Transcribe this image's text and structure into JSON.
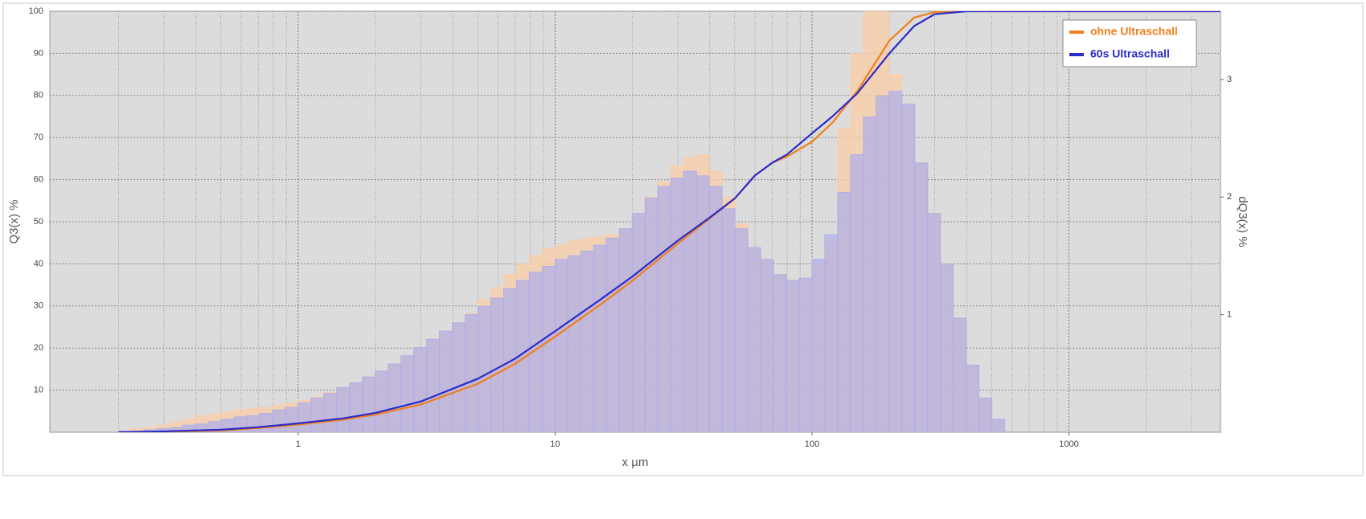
{
  "chart_data": {
    "type": "histogram",
    "xlabel": "x µm",
    "ylabel": "Q3(x) %",
    "y2label": "dQ3(x) %",
    "xscale": "log",
    "xlim": [
      0.108,
      3890
    ],
    "xticks": [
      1,
      10,
      100,
      1000
    ],
    "ylim": [
      0,
      100
    ],
    "yticks": [
      10,
      20,
      30,
      40,
      50,
      60,
      70,
      80,
      90,
      100
    ],
    "y2lim": [
      0,
      3.58
    ],
    "y2ticks": [
      1,
      2,
      3
    ],
    "grid": true,
    "minor_grid": true,
    "legend": "top-right",
    "bins": [
      0.1995,
      0.2239,
      0.2512,
      0.2818,
      0.3162,
      0.3548,
      0.3981,
      0.4467,
      0.5012,
      0.5623,
      0.631,
      0.7079,
      0.7943,
      0.8913,
      1,
      1.122,
      1.259,
      1.413,
      1.585,
      1.778,
      1.995,
      2.239,
      2.512,
      2.818,
      3.162,
      3.548,
      3.981,
      4.467,
      5.012,
      5.623,
      6.31,
      7.079,
      7.943,
      8.913,
      10,
      11.22,
      12.59,
      14.13,
      15.85,
      17.78,
      19.95,
      22.39,
      25.12,
      28.18,
      31.62,
      35.48,
      39.81,
      44.67,
      50.12,
      56.23,
      63.1,
      70.79,
      79.43,
      89.13,
      100,
      112.2,
      125.9,
      141.3,
      158.5,
      177.8,
      199.5,
      223.9,
      251.2,
      281.8,
      316.2,
      354.8,
      398.1,
      446.7,
      501.2,
      562.3
    ],
    "curve_x": [
      0.2,
      0.3,
      0.5,
      0.7,
      1,
      1.5,
      2,
      3,
      5,
      7,
      10,
      15,
      20,
      30,
      40,
      50,
      60,
      70,
      80,
      100,
      120,
      150,
      200,
      250,
      300,
      400,
      1000,
      3890
    ],
    "series": [
      {
        "name": "ohne Ultraschall",
        "color": "#f07f1a",
        "axis": "y2",
        "values": [
          0.01,
          0.03,
          0.04,
          0.06,
          0.09,
          0.11,
          0.14,
          0.15,
          0.17,
          0.19,
          0.2,
          0.21,
          0.23,
          0.25,
          0.27,
          0.3,
          0.34,
          0.38,
          0.42,
          0.47,
          0.52,
          0.58,
          0.65,
          0.72,
          0.79,
          0.86,
          0.93,
          1.01,
          1.13,
          1.23,
          1.34,
          1.43,
          1.5,
          1.56,
          1.59,
          1.63,
          1.65,
          1.66,
          1.68,
          1.73,
          1.86,
          2.0,
          2.13,
          2.27,
          2.34,
          2.36,
          2.22,
          2.0,
          1.77,
          1.57,
          1.47,
          1.34,
          1.29,
          1.29,
          1.43,
          1.61,
          2.58,
          3.22,
          3.58,
          3.58,
          3.04,
          2.77,
          2.29,
          1.86,
          1.43,
          0.97,
          0.57,
          0.29,
          0.09
        ],
        "cumulative": [
          0,
          0.1,
          0.4,
          1.0,
          1.8,
          3.0,
          4.2,
          6.6,
          11.5,
          16.3,
          22.7,
          30.3,
          36,
          44.8,
          50.8,
          55.5,
          61,
          64,
          65.5,
          69,
          73.5,
          81,
          93,
          98.5,
          99.8,
          100,
          100,
          100
        ]
      },
      {
        "name": "60s Ultraschall",
        "color": "#2b2bc8",
        "axis": "y2",
        "values": [
          0.01,
          0.01,
          0.02,
          0.03,
          0.04,
          0.06,
          0.07,
          0.09,
          0.11,
          0.13,
          0.14,
          0.16,
          0.19,
          0.21,
          0.25,
          0.29,
          0.33,
          0.38,
          0.42,
          0.47,
          0.52,
          0.58,
          0.65,
          0.72,
          0.79,
          0.86,
          0.93,
          1.0,
          1.07,
          1.14,
          1.22,
          1.29,
          1.36,
          1.41,
          1.47,
          1.5,
          1.54,
          1.59,
          1.65,
          1.73,
          1.86,
          1.99,
          2.09,
          2.16,
          2.22,
          2.18,
          2.09,
          1.9,
          1.73,
          1.57,
          1.47,
          1.34,
          1.29,
          1.31,
          1.47,
          1.68,
          2.04,
          2.36,
          2.68,
          2.86,
          2.9,
          2.79,
          2.29,
          1.86,
          1.43,
          0.97,
          0.57,
          0.29,
          0.11
        ],
        "cumulative": [
          0,
          0.2,
          0.6,
          1.2,
          2.1,
          3.3,
          4.6,
          7.3,
          12.7,
          17.5,
          24,
          31.5,
          37,
          45.5,
          51,
          55.5,
          61,
          64,
          66,
          71,
          75,
          80.5,
          90,
          96.5,
          99.3,
          100,
          100,
          100
        ]
      }
    ]
  }
}
